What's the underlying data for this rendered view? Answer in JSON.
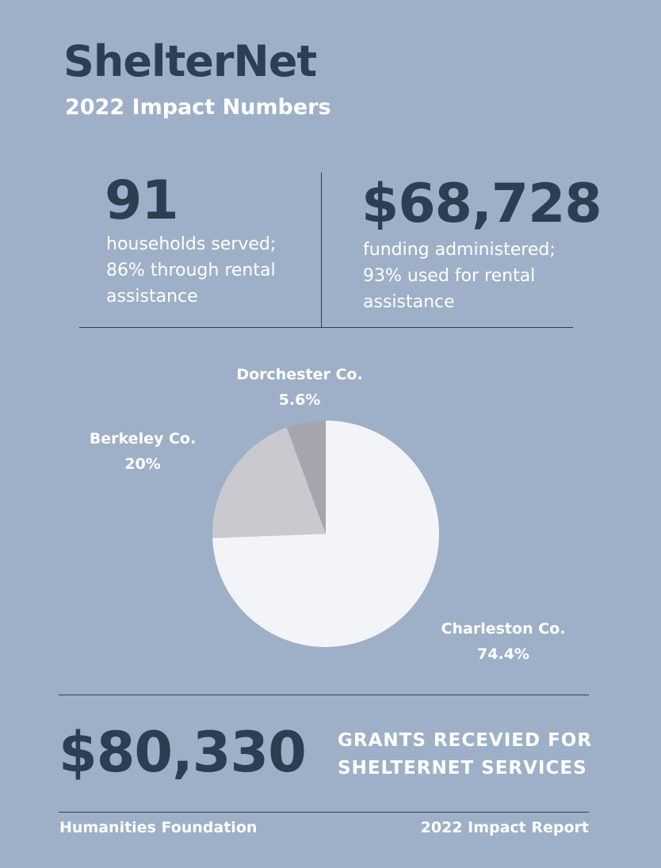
{
  "header": {
    "title": "ShelterNet",
    "subtitle": "2022 Impact Numbers"
  },
  "stats": [
    {
      "value": "91",
      "description": "households served;\n86% through rental\nassistance"
    },
    {
      "value": "$68,728",
      "description": "funding administered;\n93% used for rental\nassistance"
    }
  ],
  "chart_data": {
    "type": "pie",
    "slices": [
      {
        "label": "Charleston Co.",
        "value": 74.4,
        "display": "74.4%",
        "color": "#f3f4f8"
      },
      {
        "label": "Berkeley Co.",
        "value": 20,
        "display": "20%",
        "color": "#c9cad0"
      },
      {
        "label": "Dorchester Co.",
        "value": 5.6,
        "display": "5.6%",
        "color": "#a5a6ad"
      }
    ],
    "start_angle": "12 o'clock, clockwise"
  },
  "grants": {
    "value": "$80,330",
    "label": "GRANTS RECEVIED FOR\nSHELTERNET SERVICES"
  },
  "footer": {
    "left": "Humanities Foundation",
    "right": "2022 Impact Report"
  },
  "colors": {
    "background": "#9eb0c7",
    "dark": "#2c3e52",
    "light_text": "#ffffff"
  }
}
